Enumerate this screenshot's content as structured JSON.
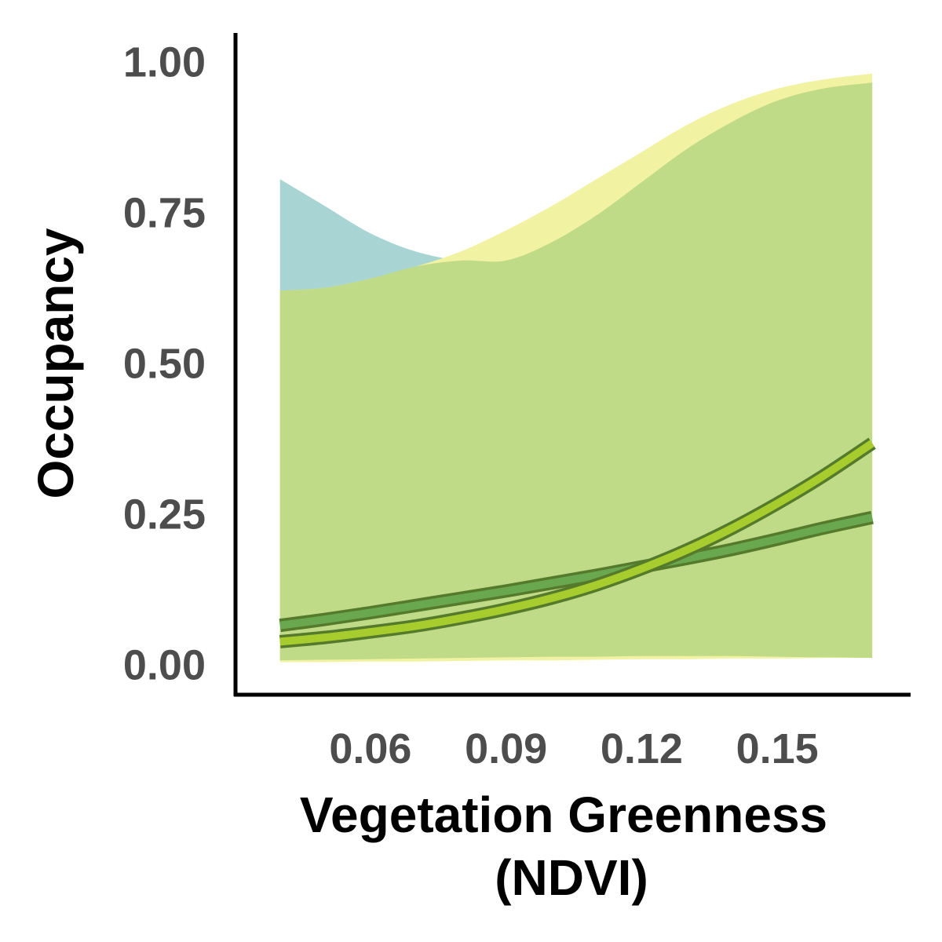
{
  "chart_data": {
    "type": "line",
    "xlabel": [
      "Vegetation Greenness",
      "(NDVI)"
    ],
    "ylabel": "Occupancy",
    "xlim": [
      0.0305,
      0.1795
    ],
    "ylim": [
      -0.05,
      1.05
    ],
    "x_ticks": [
      0.06,
      0.09,
      0.12,
      0.15
    ],
    "x_tick_labels": [
      "0.06",
      "0.09",
      "0.12",
      "0.15"
    ],
    "y_ticks": [
      0.0,
      0.25,
      0.5,
      0.75,
      1.0
    ],
    "y_tick_labels": [
      "0.00",
      "0.25",
      "0.50",
      "0.75",
      "1.00"
    ],
    "grid": false,
    "legend": "none",
    "colors": {
      "band_teal": "#a8d4d4",
      "band_yellow": "#f2f2a3",
      "band_overlap": "#c0db87",
      "line_green": "#6aa84f",
      "line_lime": "#a7cc2e",
      "line_edge": "#557a2b"
    },
    "series": [
      {
        "color_key": "teal",
        "x": [
          0.04,
          0.05,
          0.06,
          0.07,
          0.08,
          0.09,
          0.1,
          0.11,
          0.12,
          0.13,
          0.14,
          0.15,
          0.16,
          0.171
        ],
        "y": [
          0.065,
          0.075,
          0.086,
          0.098,
          0.11,
          0.122,
          0.135,
          0.148,
          0.162,
          0.176,
          0.191,
          0.208,
          0.226,
          0.244
        ],
        "lower": [
          0.007,
          0.008,
          0.009,
          0.01,
          0.011,
          0.012,
          0.013,
          0.013,
          0.014,
          0.014,
          0.014,
          0.013,
          0.012,
          0.011
        ],
        "upper": [
          0.805,
          0.76,
          0.715,
          0.685,
          0.67,
          0.67,
          0.7,
          0.745,
          0.8,
          0.855,
          0.9,
          0.935,
          0.955,
          0.965
        ]
      },
      {
        "color_key": "yellow",
        "x": [
          0.04,
          0.05,
          0.06,
          0.07,
          0.08,
          0.09,
          0.1,
          0.11,
          0.12,
          0.13,
          0.14,
          0.15,
          0.16,
          0.171
        ],
        "y": [
          0.038,
          0.045,
          0.054,
          0.064,
          0.077,
          0.092,
          0.11,
          0.132,
          0.159,
          0.19,
          0.226,
          0.267,
          0.312,
          0.367
        ],
        "lower": [
          0.004,
          0.004,
          0.005,
          0.005,
          0.006,
          0.007,
          0.007,
          0.008,
          0.009,
          0.009,
          0.01,
          0.01,
          0.011,
          0.011
        ],
        "upper": [
          0.62,
          0.625,
          0.64,
          0.66,
          0.685,
          0.72,
          0.76,
          0.805,
          0.85,
          0.895,
          0.93,
          0.955,
          0.97,
          0.98
        ]
      }
    ]
  }
}
